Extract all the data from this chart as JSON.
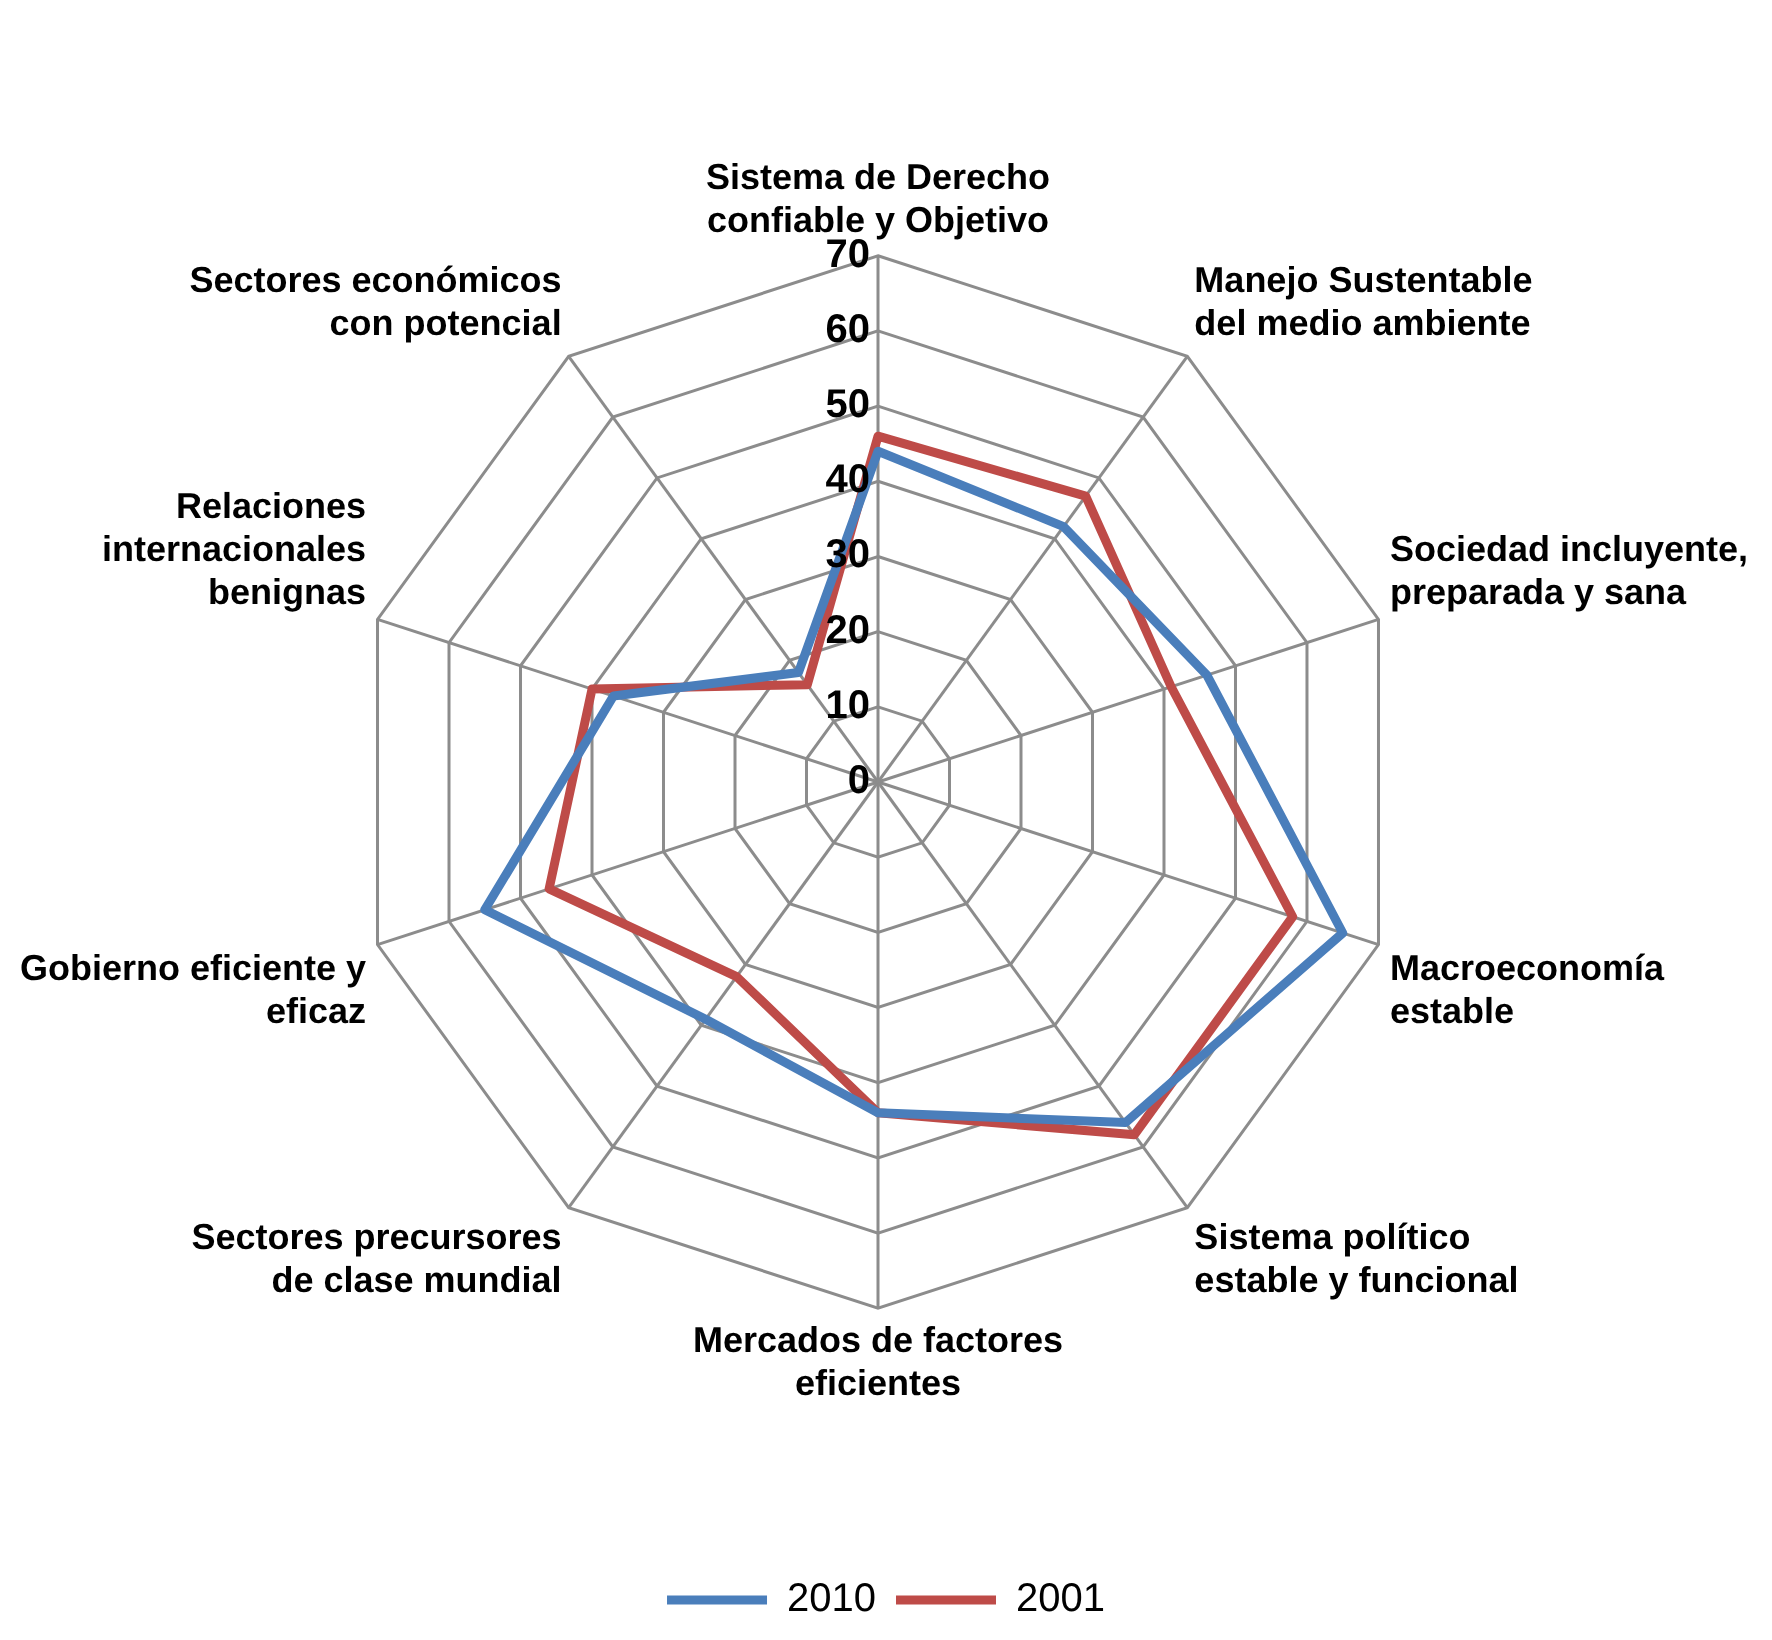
{
  "chart_data": {
    "type": "radar",
    "categories": [
      "Sistema de Derecho confiable y Objetivo",
      "Manejo Sustentable del medio ambiente",
      "Sociedad incluyente, preparada y sana",
      "Macroeconomía estable",
      "Sistema político estable y funcional",
      "Mercados de factores eficientes",
      "Sectores precursores de clase mundial",
      "Gobierno eficiente y eficaz",
      "Relaciones internacionales benignas",
      "Sectores económicos con potencial"
    ],
    "series": [
      {
        "name": "2010",
        "color": "#4a7ebb",
        "values": [
          44,
          42,
          46,
          65,
          56,
          44,
          39,
          55,
          37,
          18
        ]
      },
      {
        "name": "2001",
        "color": "#be4b48",
        "values": [
          46,
          47,
          41,
          58,
          58,
          44,
          32,
          46,
          40,
          16
        ]
      }
    ],
    "ylim": [
      0,
      70
    ],
    "yticks": [
      0,
      10,
      20,
      30,
      40,
      50,
      60,
      70
    ],
    "grid": true,
    "legend": "bottom",
    "marker": "none",
    "line_style": "solid"
  }
}
